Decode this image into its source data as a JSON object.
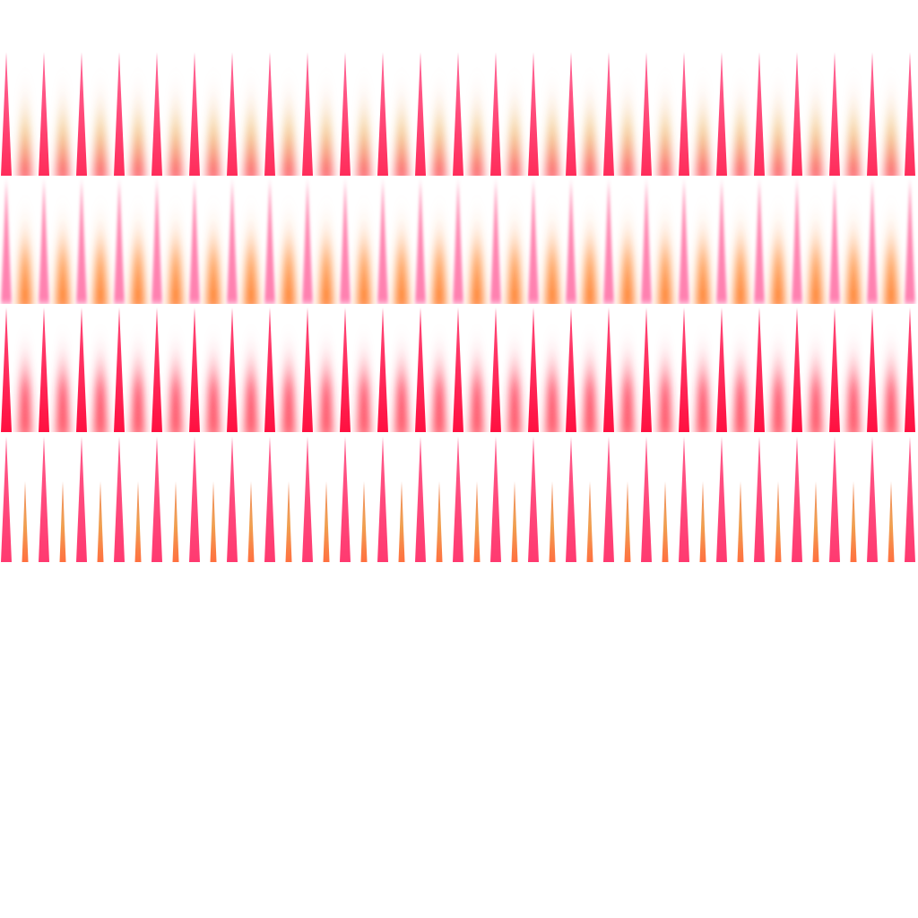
{
  "sheet": {
    "background": "#ffffff",
    "rows": [
      {
        "name": "spike-row-pink-glow",
        "primary": {
          "count": 25,
          "color_tip": "#ff6a9a",
          "color_base": "#ff2c5a"
        },
        "secondary": {
          "count": 24,
          "color_tip": "#ffd0d8",
          "color_mid": "#f0c070",
          "color_base": "#ff3050",
          "blurred": true
        }
      },
      {
        "name": "spike-row-orange-glow",
        "primary": {
          "count": 25,
          "color_tip": "#ff8ab0",
          "color_base": "#ff80b0",
          "soft": true
        },
        "secondary": {
          "count": 24,
          "color_tip": "#ffe0d0",
          "color_mid": "#ff8a30",
          "color_base": "#ff6a10",
          "blurred": true
        }
      },
      {
        "name": "spike-row-red-glow",
        "primary": {
          "count": 25,
          "color_tip": "#ff4a7a",
          "color_base": "#ff1040"
        },
        "secondary": {
          "count": 24,
          "color_tip": "#ffd0d8",
          "color_mid": "#ff2040",
          "color_base": "#ff5060",
          "blurred": true
        }
      },
      {
        "name": "spike-row-sharp",
        "primary": {
          "count": 25,
          "color_tip": "#ff5a8a",
          "color_base": "#ff3a70"
        },
        "secondary": {
          "count": 24,
          "color_tip": "#f08a60",
          "color_mid": "#f0a050",
          "color_base": "#ff7040",
          "blurred": false
        }
      }
    ]
  }
}
